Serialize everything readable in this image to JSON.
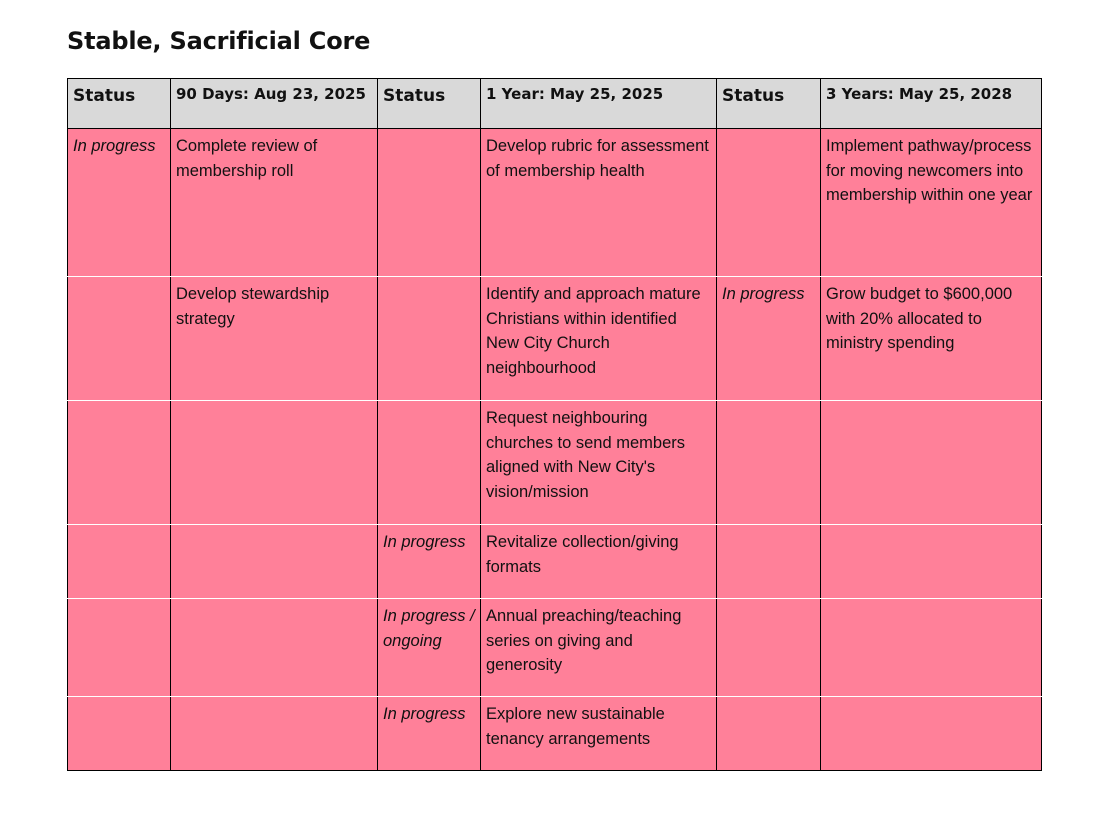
{
  "title": "Stable, Sacrificial Core",
  "table": {
    "headers": [
      "Status",
      "90 Days: Aug 23, 2025",
      "Status",
      "1 Year: May 25, 2025",
      "Status",
      "3 Years: May 25, 2028"
    ],
    "rows": [
      [
        "In progress",
        "Complete review of membership roll",
        "",
        "Develop rubric for assessment of membership health",
        "",
        "Implement pathway/process for moving newcomers into membership within one year"
      ],
      [
        "",
        "Develop stewardship strategy",
        "",
        "Identify and approach mature Christians within identified New City Church neighbourhood",
        "In progress",
        "Grow budget to $600,000 with 20% allocated to ministry spending"
      ],
      [
        "",
        "",
        "",
        "Request neighbouring churches to send members aligned with New City's vision/mission",
        "",
        ""
      ],
      [
        "",
        "",
        "In progress",
        "Revitalize collection/giving formats",
        "",
        ""
      ],
      [
        "",
        "",
        "In progress / ongoing",
        "Annual preaching/teaching series on giving and generosity",
        "",
        ""
      ],
      [
        "",
        "",
        "In progress",
        "Explore new sustainable tenancy arrangements",
        "",
        ""
      ]
    ]
  },
  "colors": {
    "header_bg": "#d9d9d9",
    "cell_bg": "#ff8099",
    "border": "#000000"
  }
}
